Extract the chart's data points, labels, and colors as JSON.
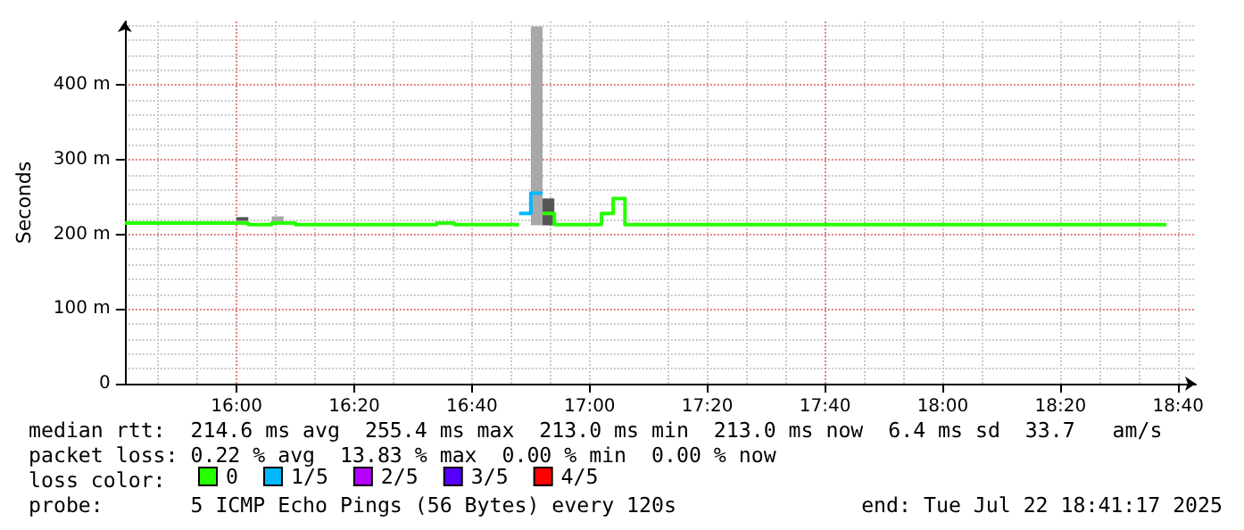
{
  "chart_data": {
    "type": "line",
    "ylabel": "Seconds",
    "xlim": [
      "2025-07-22T15:41",
      "2025-07-22T18:43"
    ],
    "xticks": [
      {
        "value": "2025-07-22T16:00",
        "label": "16:00"
      },
      {
        "value": "2025-07-22T16:20",
        "label": "16:20"
      },
      {
        "value": "2025-07-22T16:40",
        "label": "16:40"
      },
      {
        "value": "2025-07-22T17:00",
        "label": "17:00"
      },
      {
        "value": "2025-07-22T17:20",
        "label": "17:20"
      },
      {
        "value": "2025-07-22T17:40",
        "label": "17:40"
      },
      {
        "value": "2025-07-22T18:00",
        "label": "18:00"
      },
      {
        "value": "2025-07-22T18:20",
        "label": "18:20"
      },
      {
        "value": "2025-07-22T18:40",
        "label": "18:40"
      }
    ],
    "ylim": [
      0,
      485
    ],
    "yticks": [
      0,
      {
        "value": 100,
        "label": "100 m"
      },
      {
        "value": 200,
        "label": "200 m"
      },
      {
        "value": 300,
        "label": "300 m"
      },
      {
        "value": 400,
        "label": "400 m"
      }
    ],
    "grid": true,
    "legend": "bottom left",
    "legend_title": "loss color:",
    "marker": "none",
    "series": [
      {
        "type": "bar",
        "x": [
          "2025-07-22T16:01",
          "2025-07-22T16:07",
          "2025-07-22T16:51",
          "2025-07-22T16:53"
        ],
        "values": [
          5,
          10,
          266,
          36
        ],
        "base": [
          218,
          214,
          212,
          212
        ],
        "colors": [
          "#555555",
          "#a8a8a8",
          "#a8a8a8",
          "#555555"
        ]
      },
      {
        "name": "0",
        "color": "#26ff00",
        "x": [
          "2025-07-22T15:41",
          "2025-07-22T16:02",
          "2025-07-22T16:02",
          "2025-07-22T16:06",
          "2025-07-22T16:06",
          "2025-07-22T16:10",
          "2025-07-22T16:10",
          "2025-07-22T16:34",
          "2025-07-22T16:34",
          "2025-07-22T16:37",
          "2025-07-22T16:37",
          "2025-07-22T16:48",
          "2025-07-22T16:50",
          "2025-07-22T16:52",
          "2025-07-22T16:54",
          "2025-07-22T16:54",
          "2025-07-22T17:02",
          "2025-07-22T17:02",
          "2025-07-22T17:04",
          "2025-07-22T17:04",
          "2025-07-22T17:06",
          "2025-07-22T17:06",
          "2025-07-22T18:38"
        ],
        "values": [
          215,
          215,
          213,
          213,
          215,
          215,
          213,
          213,
          215,
          215,
          213,
          213,
          null,
          228,
          228,
          213,
          213,
          228,
          228,
          248,
          248,
          213,
          213
        ]
      },
      {
        "name": "1/5",
        "color": "#00b8ff",
        "x": [
          "2025-07-22T16:48",
          "2025-07-22T16:50",
          "2025-07-22T16:50",
          "2025-07-22T16:52"
        ],
        "values": [
          228,
          228,
          255,
          255
        ]
      },
      {
        "name": "2/5",
        "color": "#b400ff"
      },
      {
        "name": "3/5",
        "color": "#5600ff"
      },
      {
        "name": "4/5",
        "color": "#ff0000"
      }
    ],
    "annotations": [
      "median rtt:  214.6 ms avg  255.4 ms max  213.0 ms min  213.0 ms now  6.4 ms sd  33.7   am/s",
      "packet loss: 0.22 % avg  13.83 % max  0.00 % min  0.00 % now",
      "probe:       5 ICMP Echo Pings (56 Bytes) every 120s",
      "end: Tue Jul 22 18:41:17 2025"
    ]
  }
}
